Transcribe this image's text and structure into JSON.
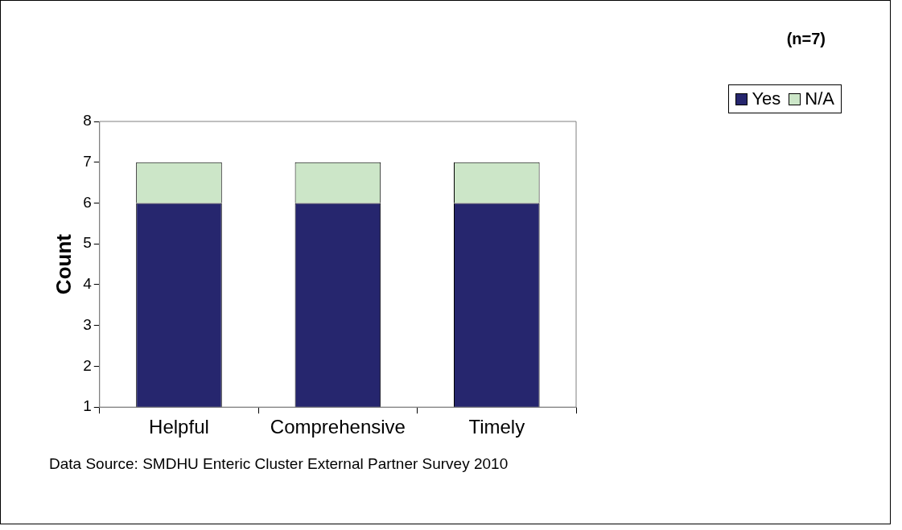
{
  "chart_data": {
    "type": "bar",
    "ylabel": "Count",
    "categories": [
      "Helpful",
      "Comprehensive",
      "Timely"
    ],
    "stacked": true,
    "series": [
      {
        "name": "Yes",
        "color": "#26266e",
        "values": [
          6,
          6,
          6
        ]
      },
      {
        "name": "N/A",
        "color": "#cce6c8",
        "values": [
          1,
          1,
          1
        ]
      }
    ],
    "ylim": [
      1,
      8
    ],
    "yticks": [
      1,
      2,
      3,
      4,
      5,
      6,
      7,
      8
    ],
    "grid": false,
    "legend": "top right",
    "annotations": [
      "(n=7)",
      "Data Source: SMDHU Enteric Cluster External Partner Survey 2010"
    ]
  }
}
